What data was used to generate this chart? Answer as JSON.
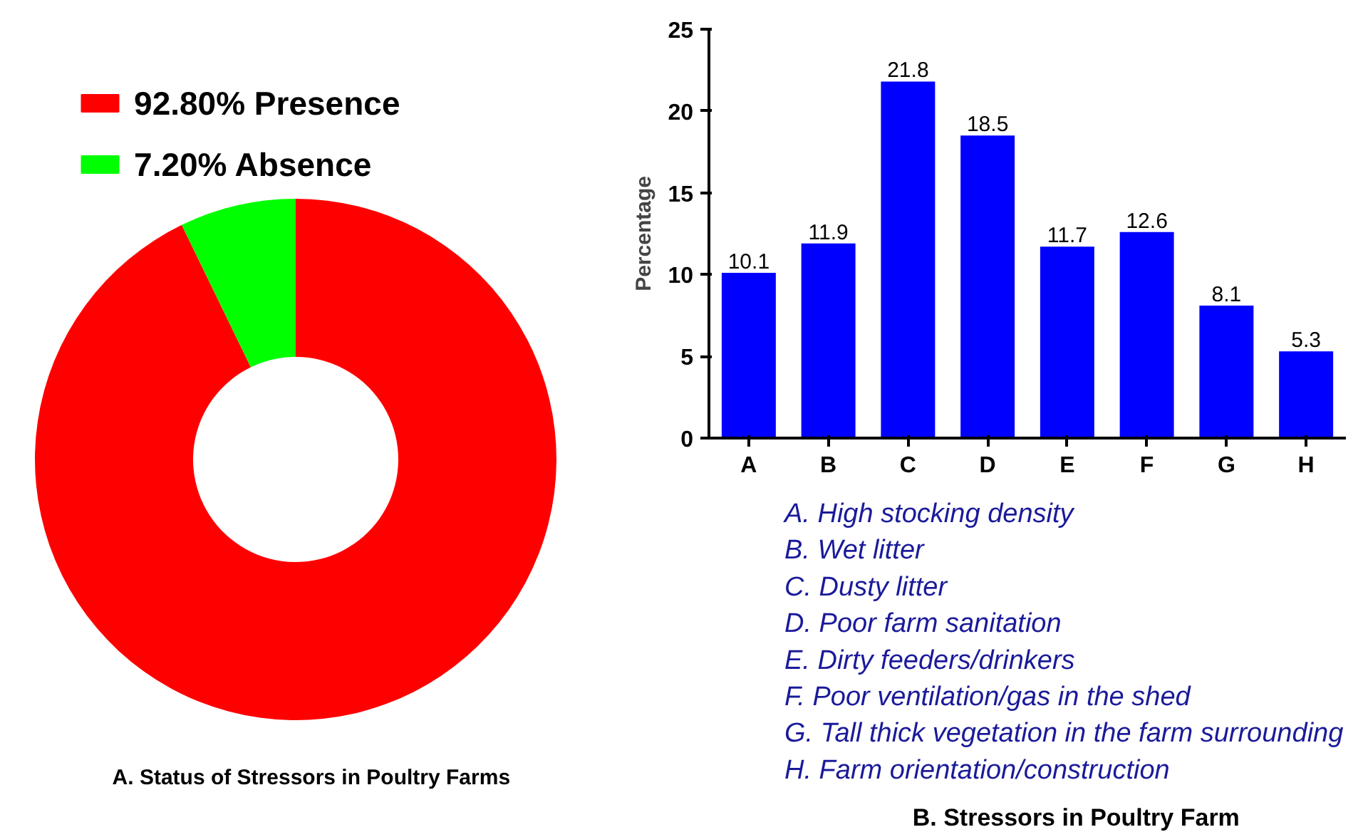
{
  "chart_data": [
    {
      "type": "donut",
      "title": "A. Status of Stressors in Poultry  Farms",
      "categories": [
        "Presence",
        "Absence"
      ],
      "values": [
        92.8,
        7.2
      ],
      "value_labels": [
        "92.80%",
        "7.20%"
      ],
      "colors": [
        "#ff0000",
        "#00ff00"
      ],
      "legend": "top"
    },
    {
      "type": "bar",
      "title": "B. Stressors in Poultry  Farm",
      "ylabel": "Percentage",
      "categories": [
        "A",
        "B",
        "C",
        "D",
        "E",
        "F",
        "G",
        "H"
      ],
      "values": [
        10.1,
        11.9,
        21.8,
        18.5,
        11.7,
        12.6,
        8.1,
        5.3
      ],
      "color": "#0000ff",
      "ylim": [
        0,
        25
      ],
      "yticks": [
        0,
        5,
        10,
        15,
        20,
        25
      ],
      "data_labels": true,
      "grid": false,
      "annotations": [
        "A. High stocking density",
        "B. Wet litter",
        "C. Dusty litter",
        "D. Poor farm sanitation",
        "E. Dirty feeders/drinkers",
        "F. Poor ventilation/gas in the shed",
        "G. Tall thick vegetation in the farm surrounding",
        "H. Farm orientation/construction"
      ]
    }
  ]
}
